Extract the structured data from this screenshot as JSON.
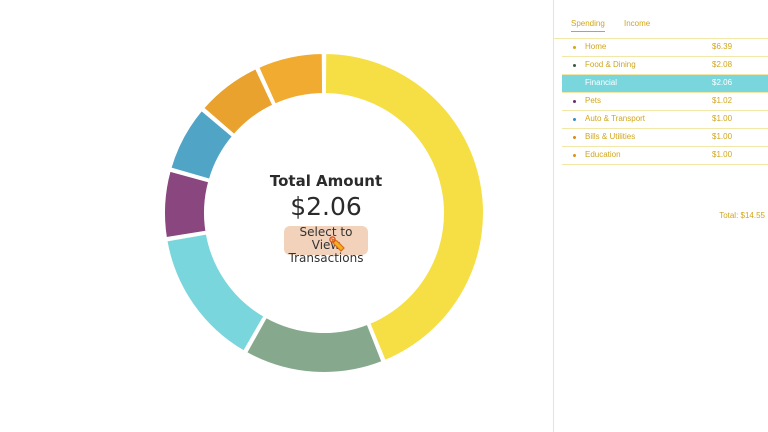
{
  "center": {
    "title": "Total Amount",
    "amount": "$2.06",
    "button_line1": "Select to View",
    "button_line2": "Transactions"
  },
  "tabs": [
    {
      "label": "Spending",
      "active": true
    },
    {
      "label": "Income",
      "active": false
    }
  ],
  "categories": [
    {
      "name": "Home",
      "amount": "$6.39",
      "value": 6.39,
      "color": "#f5df45",
      "dot": "#d1a61b",
      "selected": false
    },
    {
      "name": "Food & Dining",
      "amount": "$2.08",
      "value": 2.08,
      "color": "#86a98d",
      "dot": "#3a5a40",
      "selected": false
    },
    {
      "name": "Financial",
      "amount": "$2.06",
      "value": 2.06,
      "color": "#79d6dc",
      "dot": "#79d6dc",
      "selected": true
    },
    {
      "name": "Pets",
      "amount": "$1.02",
      "value": 1.02,
      "color": "#8a467e",
      "dot": "#6b2f62",
      "selected": false
    },
    {
      "name": "Auto & Transport",
      "amount": "$1.00",
      "value": 1.0,
      "color": "#50a4c5",
      "dot": "#3b8ac0",
      "selected": false
    },
    {
      "name": "Bills & Utilities",
      "amount": "$1.00",
      "value": 1.0,
      "color": "#e8a22d",
      "dot": "#d98a1a",
      "selected": false
    },
    {
      "name": "Education",
      "amount": "$1.00",
      "value": 1.0,
      "color": "#f0ab30",
      "dot": "#e0901a",
      "selected": false
    }
  ],
  "total_label": "Total: $14.55"
}
